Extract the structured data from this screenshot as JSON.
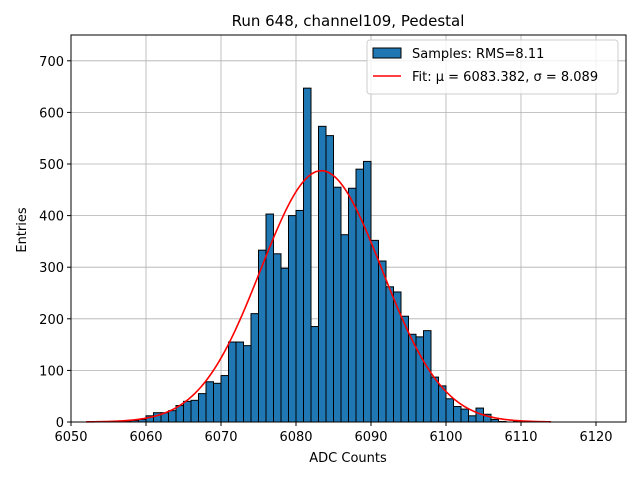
{
  "chart_data": {
    "type": "bar",
    "title": "Run 648, channel109, Pedestal",
    "xlabel": "ADC Counts",
    "ylabel": "Entries",
    "xlim": [
      6050,
      6124
    ],
    "ylim": [
      0,
      750
    ],
    "xticks": [
      6050,
      6060,
      6070,
      6080,
      6090,
      6100,
      6110,
      6120
    ],
    "yticks": [
      0,
      100,
      200,
      300,
      400,
      500,
      600,
      700
    ],
    "grid": true,
    "bin_width": 1,
    "bins": [
      6053,
      6054,
      6055,
      6056,
      6057,
      6058,
      6059,
      6060,
      6061,
      6062,
      6063,
      6064,
      6065,
      6066,
      6067,
      6068,
      6069,
      6070,
      6071,
      6072,
      6073,
      6074,
      6075,
      6076,
      6077,
      6078,
      6079,
      6080,
      6081,
      6082,
      6083,
      6084,
      6085,
      6086,
      6087,
      6088,
      6089,
      6090,
      6091,
      6092,
      6093,
      6094,
      6095,
      6096,
      6097,
      6098,
      6099,
      6100,
      6101,
      6102,
      6103,
      6104,
      6105,
      6106,
      6107,
      6108,
      6109,
      6110,
      6111,
      6112,
      6113,
      6114
    ],
    "counts": [
      1,
      0,
      0,
      1,
      2,
      3,
      5,
      12,
      18,
      18,
      22,
      32,
      40,
      42,
      55,
      78,
      75,
      90,
      155,
      155,
      148,
      210,
      333,
      403,
      326,
      298,
      400,
      410,
      647,
      185,
      573,
      555,
      455,
      363,
      453,
      490,
      505,
      352,
      312,
      262,
      252,
      205,
      170,
      165,
      177,
      87,
      70,
      45,
      30,
      25,
      12,
      27,
      15,
      5,
      1,
      0,
      1,
      0,
      0,
      0,
      0,
      0
    ],
    "fit": {
      "mu": 6083.382,
      "sigma": 8.089,
      "amplitude": 487,
      "x_range": [
        6052,
        6114
      ]
    },
    "colors": {
      "bars": "#1f77b4",
      "bar_edge": "#000000",
      "fit_line": "#ff0000",
      "grid": "#b0b0b0"
    },
    "legend": {
      "position": "top-right",
      "entries": [
        {
          "label": "Samples: RMS=8.11",
          "kind": "patch"
        },
        {
          "label": "Fit: μ = 6083.382, σ = 8.089",
          "kind": "line"
        }
      ]
    }
  }
}
